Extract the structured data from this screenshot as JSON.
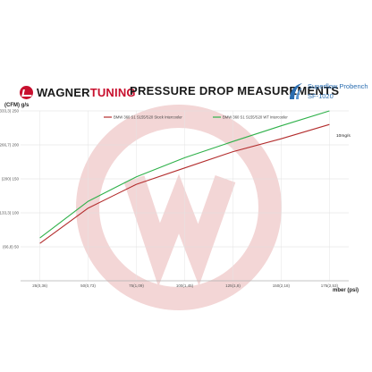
{
  "header": {
    "brand_primary": "WAGNER",
    "brand_secondary": "TUNING",
    "title": "PRESSURE DROP MEASUREMENTS",
    "bench_line1": "Superflow Probench",
    "bench_line2": "SF-1020"
  },
  "chart_data": {
    "type": "line",
    "ylabel": "(CFM) g/s",
    "xlabel": "mber (psi)",
    "x_tick_labels": [
      "25(0,36)",
      "50(0,73)",
      "75(1,09)",
      "100(1,45)",
      "125(1,8)",
      "150(2,18)",
      "175(2,53)"
    ],
    "y_tick_labels": [
      "",
      "(66,8) 50",
      "(133,3) 100",
      "(200) 150",
      "(266,7) 200",
      "(333,3) 250"
    ],
    "x": [
      25,
      50,
      75,
      100,
      125,
      150,
      175
    ],
    "xlim": [
      15,
      185
    ],
    "ylim": [
      0,
      250
    ],
    "grid": true,
    "legend_position": "top",
    "annotation": "10mg/s",
    "series": [
      {
        "name": "BMW 360 S1 S155/S20 Stock Intercooler",
        "color": "#b32d2d",
        "values": [
          55,
          107,
          142,
          166,
          190,
          209,
          230
        ]
      },
      {
        "name": "BMW 360 S1 S155/S20 WT Intercooler",
        "color": "#2fb14a",
        "values": [
          63,
          117,
          153,
          181,
          205,
          228,
          250
        ]
      }
    ]
  }
}
